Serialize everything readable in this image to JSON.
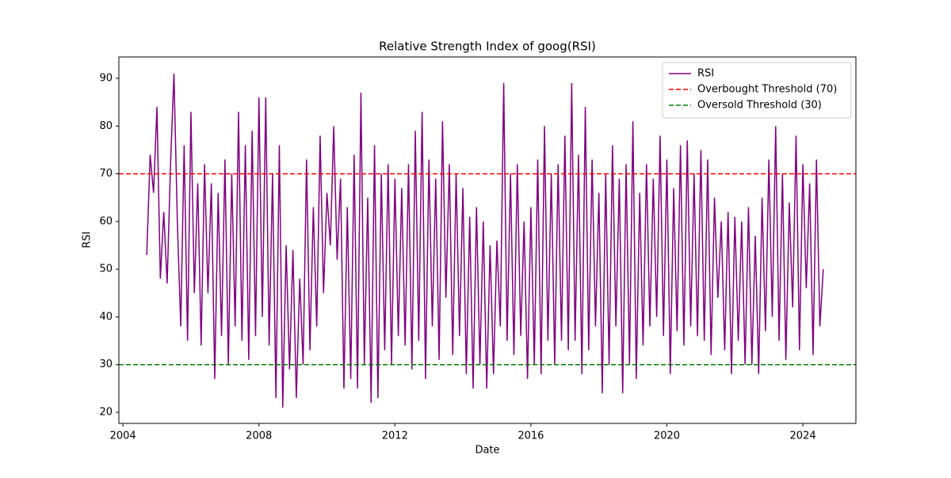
{
  "chart_data": {
    "type": "line",
    "title": "Relative Strength Index of goog(RSI)",
    "x_label": "Date",
    "y_label": "RSI",
    "x": [
      2004.7,
      2004.8,
      2004.9,
      2005.0,
      2005.1,
      2005.2,
      2005.3,
      2005.4,
      2005.5,
      2005.6,
      2005.7,
      2005.8,
      2005.9,
      2006.0,
      2006.1,
      2006.2,
      2006.3,
      2006.4,
      2006.5,
      2006.6,
      2006.7,
      2006.8,
      2006.9,
      2007.0,
      2007.1,
      2007.2,
      2007.3,
      2007.4,
      2007.5,
      2007.6,
      2007.7,
      2007.8,
      2007.9,
      2008.0,
      2008.1,
      2008.2,
      2008.3,
      2008.4,
      2008.5,
      2008.6,
      2008.7,
      2008.8,
      2008.9,
      2009.0,
      2009.1,
      2009.2,
      2009.3,
      2009.4,
      2009.5,
      2009.6,
      2009.7,
      2009.8,
      2009.9,
      2010.0,
      2010.1,
      2010.2,
      2010.3,
      2010.4,
      2010.5,
      2010.6,
      2010.7,
      2010.8,
      2010.9,
      2011.0,
      2011.1,
      2011.2,
      2011.3,
      2011.4,
      2011.5,
      2011.6,
      2011.7,
      2011.8,
      2011.9,
      2012.0,
      2012.1,
      2012.2,
      2012.3,
      2012.4,
      2012.5,
      2012.6,
      2012.7,
      2012.8,
      2012.9,
      2013.0,
      2013.1,
      2013.2,
      2013.3,
      2013.4,
      2013.5,
      2013.6,
      2013.7,
      2013.8,
      2013.9,
      2014.0,
      2014.1,
      2014.2,
      2014.3,
      2014.4,
      2014.5,
      2014.6,
      2014.7,
      2014.8,
      2014.9,
      2015.0,
      2015.1,
      2015.2,
      2015.3,
      2015.4,
      2015.5,
      2015.6,
      2015.7,
      2015.8,
      2015.9,
      2016.0,
      2016.1,
      2016.2,
      2016.3,
      2016.4,
      2016.5,
      2016.6,
      2016.7,
      2016.8,
      2016.9,
      2017.0,
      2017.1,
      2017.2,
      2017.3,
      2017.4,
      2017.5,
      2017.6,
      2017.7,
      2017.8,
      2017.9,
      2018.0,
      2018.1,
      2018.2,
      2018.3,
      2018.4,
      2018.5,
      2018.6,
      2018.7,
      2018.8,
      2018.9,
      2019.0,
      2019.1,
      2019.2,
      2019.3,
      2019.4,
      2019.5,
      2019.6,
      2019.7,
      2019.8,
      2019.9,
      2020.0,
      2020.1,
      2020.2,
      2020.3,
      2020.4,
      2020.5,
      2020.6,
      2020.7,
      2020.8,
      2020.9,
      2021.0,
      2021.1,
      2021.2,
      2021.3,
      2021.4,
      2021.5,
      2021.6,
      2021.7,
      2021.8,
      2021.9,
      2022.0,
      2022.1,
      2022.2,
      2022.3,
      2022.4,
      2022.5,
      2022.6,
      2022.7,
      2022.8,
      2022.9,
      2023.0,
      2023.1,
      2023.2,
      2023.3,
      2023.4,
      2023.5,
      2023.6,
      2023.7,
      2023.8,
      2023.9,
      2024.0,
      2024.1,
      2024.2,
      2024.3,
      2024.4,
      2024.5,
      2024.6
    ],
    "series": [
      {
        "name": "RSI",
        "color": "#800080",
        "values": [
          53,
          74,
          66,
          84,
          48,
          62,
          47,
          72,
          91,
          60,
          38,
          76,
          35,
          83,
          45,
          68,
          34,
          72,
          45,
          68,
          27,
          66,
          36,
          73,
          30,
          70,
          38,
          83,
          35,
          76,
          31,
          79,
          36,
          86,
          40,
          86,
          34,
          70,
          23,
          76,
          21,
          55,
          29,
          54,
          23,
          48,
          30,
          73,
          33,
          63,
          38,
          78,
          45,
          66,
          55,
          80,
          52,
          69,
          25,
          63,
          27,
          74,
          25,
          87,
          30,
          65,
          22,
          76,
          23,
          70,
          33,
          72,
          30,
          69,
          36,
          67,
          34,
          72,
          29,
          79,
          35,
          83,
          27,
          73,
          38,
          69,
          31,
          81,
          44,
          72,
          32,
          70,
          36,
          67,
          28,
          61,
          25,
          63,
          30,
          60,
          25,
          55,
          28,
          56,
          38,
          89,
          35,
          70,
          32,
          72,
          36,
          60,
          27,
          63,
          30,
          73,
          28,
          80,
          35,
          70,
          30,
          72,
          35,
          78,
          33,
          89,
          35,
          74,
          28,
          84,
          33,
          73,
          38,
          66,
          24,
          70,
          30,
          76,
          38,
          69,
          24,
          72,
          30,
          81,
          27,
          66,
          34,
          72,
          38,
          69,
          40,
          78,
          36,
          73,
          28,
          67,
          37,
          76,
          34,
          77,
          38,
          70,
          36,
          75,
          35,
          73,
          32,
          65,
          44,
          60,
          33,
          62,
          28,
          61,
          35,
          60,
          30,
          63,
          30,
          57,
          28,
          65,
          37,
          73,
          40,
          80,
          35,
          70,
          31,
          64,
          42,
          78,
          33,
          72,
          46,
          68,
          32,
          73,
          38,
          50
        ]
      }
    ],
    "hlines": [
      {
        "name": "Overbought Threshold (70)",
        "value": 70,
        "color": "#ff0000"
      },
      {
        "name": "Oversold Threshold (30)",
        "value": 30,
        "color": "#008000"
      }
    ],
    "xlim": [
      2003.88,
      2025.56
    ],
    "xticks": [
      2004,
      2008,
      2012,
      2016,
      2020,
      2024
    ],
    "ylim": [
      17.68,
      94.48
    ],
    "yticks": [
      20,
      30,
      40,
      50,
      60,
      70,
      80,
      90
    ],
    "grid": false,
    "legend": "upper right"
  }
}
